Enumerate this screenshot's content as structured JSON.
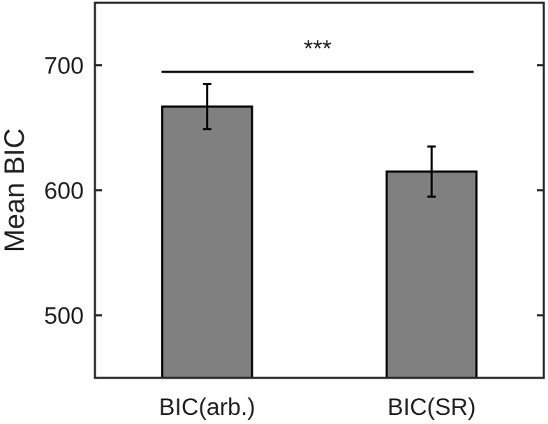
{
  "chart_data": {
    "type": "bar",
    "categories": [
      "BIC(arb.)",
      "BIC(SR)"
    ],
    "values": [
      667,
      615
    ],
    "error": [
      18,
      20
    ],
    "ylabel": "Mean BIC",
    "ylim": [
      450,
      750
    ],
    "yticks": [
      500,
      600,
      700
    ],
    "significance": {
      "label": "***",
      "y": 697,
      "from": 0,
      "to": 1
    },
    "grid": false,
    "bar_color": "#808080",
    "edge_color": "#000000"
  }
}
